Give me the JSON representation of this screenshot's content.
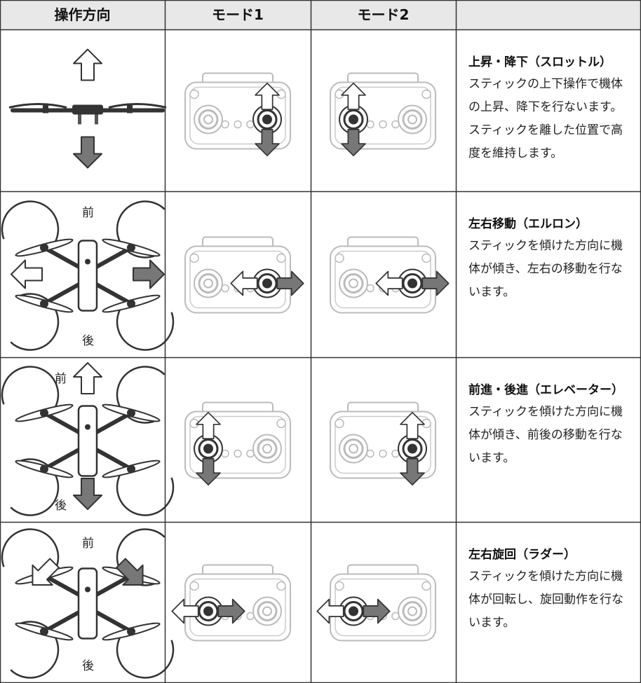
{
  "header": {
    "columns": [
      "操作方向",
      "モード1",
      "モード2"
    ]
  },
  "rows": [
    {
      "title": "上昇・降下（スロットル）",
      "description": "スティックの上下操作で機体の上昇、降下を行ないます。スティックを離した位置で高度を維持します。"
    },
    {
      "front": "前",
      "back": "後",
      "title": "左右移動（エルロン）",
      "description": "スティックを傾けた方向に機体が傾き、左右の移動を行ないます。"
    },
    {
      "front": "前",
      "back": "後",
      "title": "前進・後進（エレベーター）",
      "description": "スティックを傾けた方向に機体が傾き、前後の移動を行ないます。"
    },
    {
      "front": "前",
      "back": "後",
      "title": "左右旋回（ラダー）",
      "description": "スティックを傾けた方向に機体が回転し、旋回動作を行ないます。"
    }
  ]
}
